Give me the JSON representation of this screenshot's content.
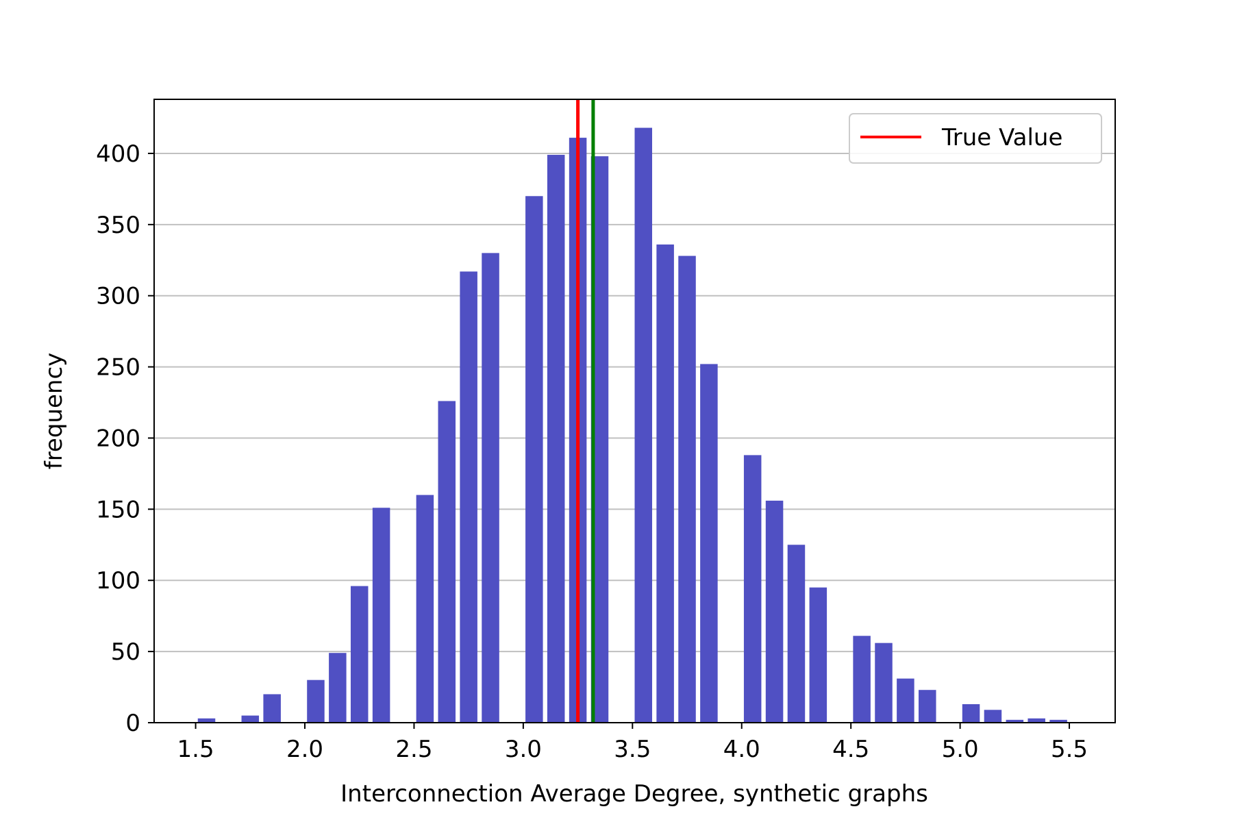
{
  "chart_data": {
    "type": "bar",
    "xlabel": "Interconnection Average Degree, synthetic graphs",
    "ylabel": "frequency",
    "xlim": [
      1.31,
      5.71
    ],
    "ylim": [
      0,
      438
    ],
    "xticks": [
      1.5,
      2.0,
      2.5,
      3.0,
      3.5,
      4.0,
      4.5,
      5.0,
      5.5
    ],
    "xtick_labels": [
      "1.5",
      "2.0",
      "2.5",
      "3.0",
      "3.5",
      "4.0",
      "4.5",
      "5.0",
      "5.5"
    ],
    "yticks": [
      0,
      50,
      100,
      150,
      200,
      250,
      300,
      350,
      400
    ],
    "ytick_labels": [
      "0",
      "50",
      "100",
      "150",
      "200",
      "250",
      "300",
      "350",
      "400"
    ],
    "grid": "horizontal",
    "bar_width": 0.08,
    "bar_color": "#5050c3",
    "x": [
      1.55,
      1.75,
      1.85,
      2.05,
      2.15,
      2.25,
      2.35,
      2.55,
      2.65,
      2.75,
      2.85,
      3.05,
      3.15,
      3.25,
      3.35,
      3.55,
      3.65,
      3.75,
      3.85,
      4.05,
      4.15,
      4.25,
      4.35,
      4.55,
      4.65,
      4.75,
      4.85,
      5.05,
      5.15,
      5.25,
      5.35,
      5.45
    ],
    "values": [
      3,
      5,
      20,
      30,
      49,
      96,
      151,
      160,
      226,
      317,
      330,
      370,
      399,
      411,
      398,
      418,
      336,
      328,
      252,
      188,
      156,
      125,
      95,
      61,
      56,
      31,
      23,
      13,
      9,
      2,
      3,
      2
    ],
    "vlines": [
      {
        "x": 3.25,
        "color": "#ff0000",
        "label": "True Value"
      },
      {
        "x": 3.32,
        "color": "#008000"
      }
    ],
    "legend": {
      "position": "top-right",
      "entries": [
        {
          "label": "True Value",
          "color": "#ff0000"
        }
      ]
    }
  }
}
